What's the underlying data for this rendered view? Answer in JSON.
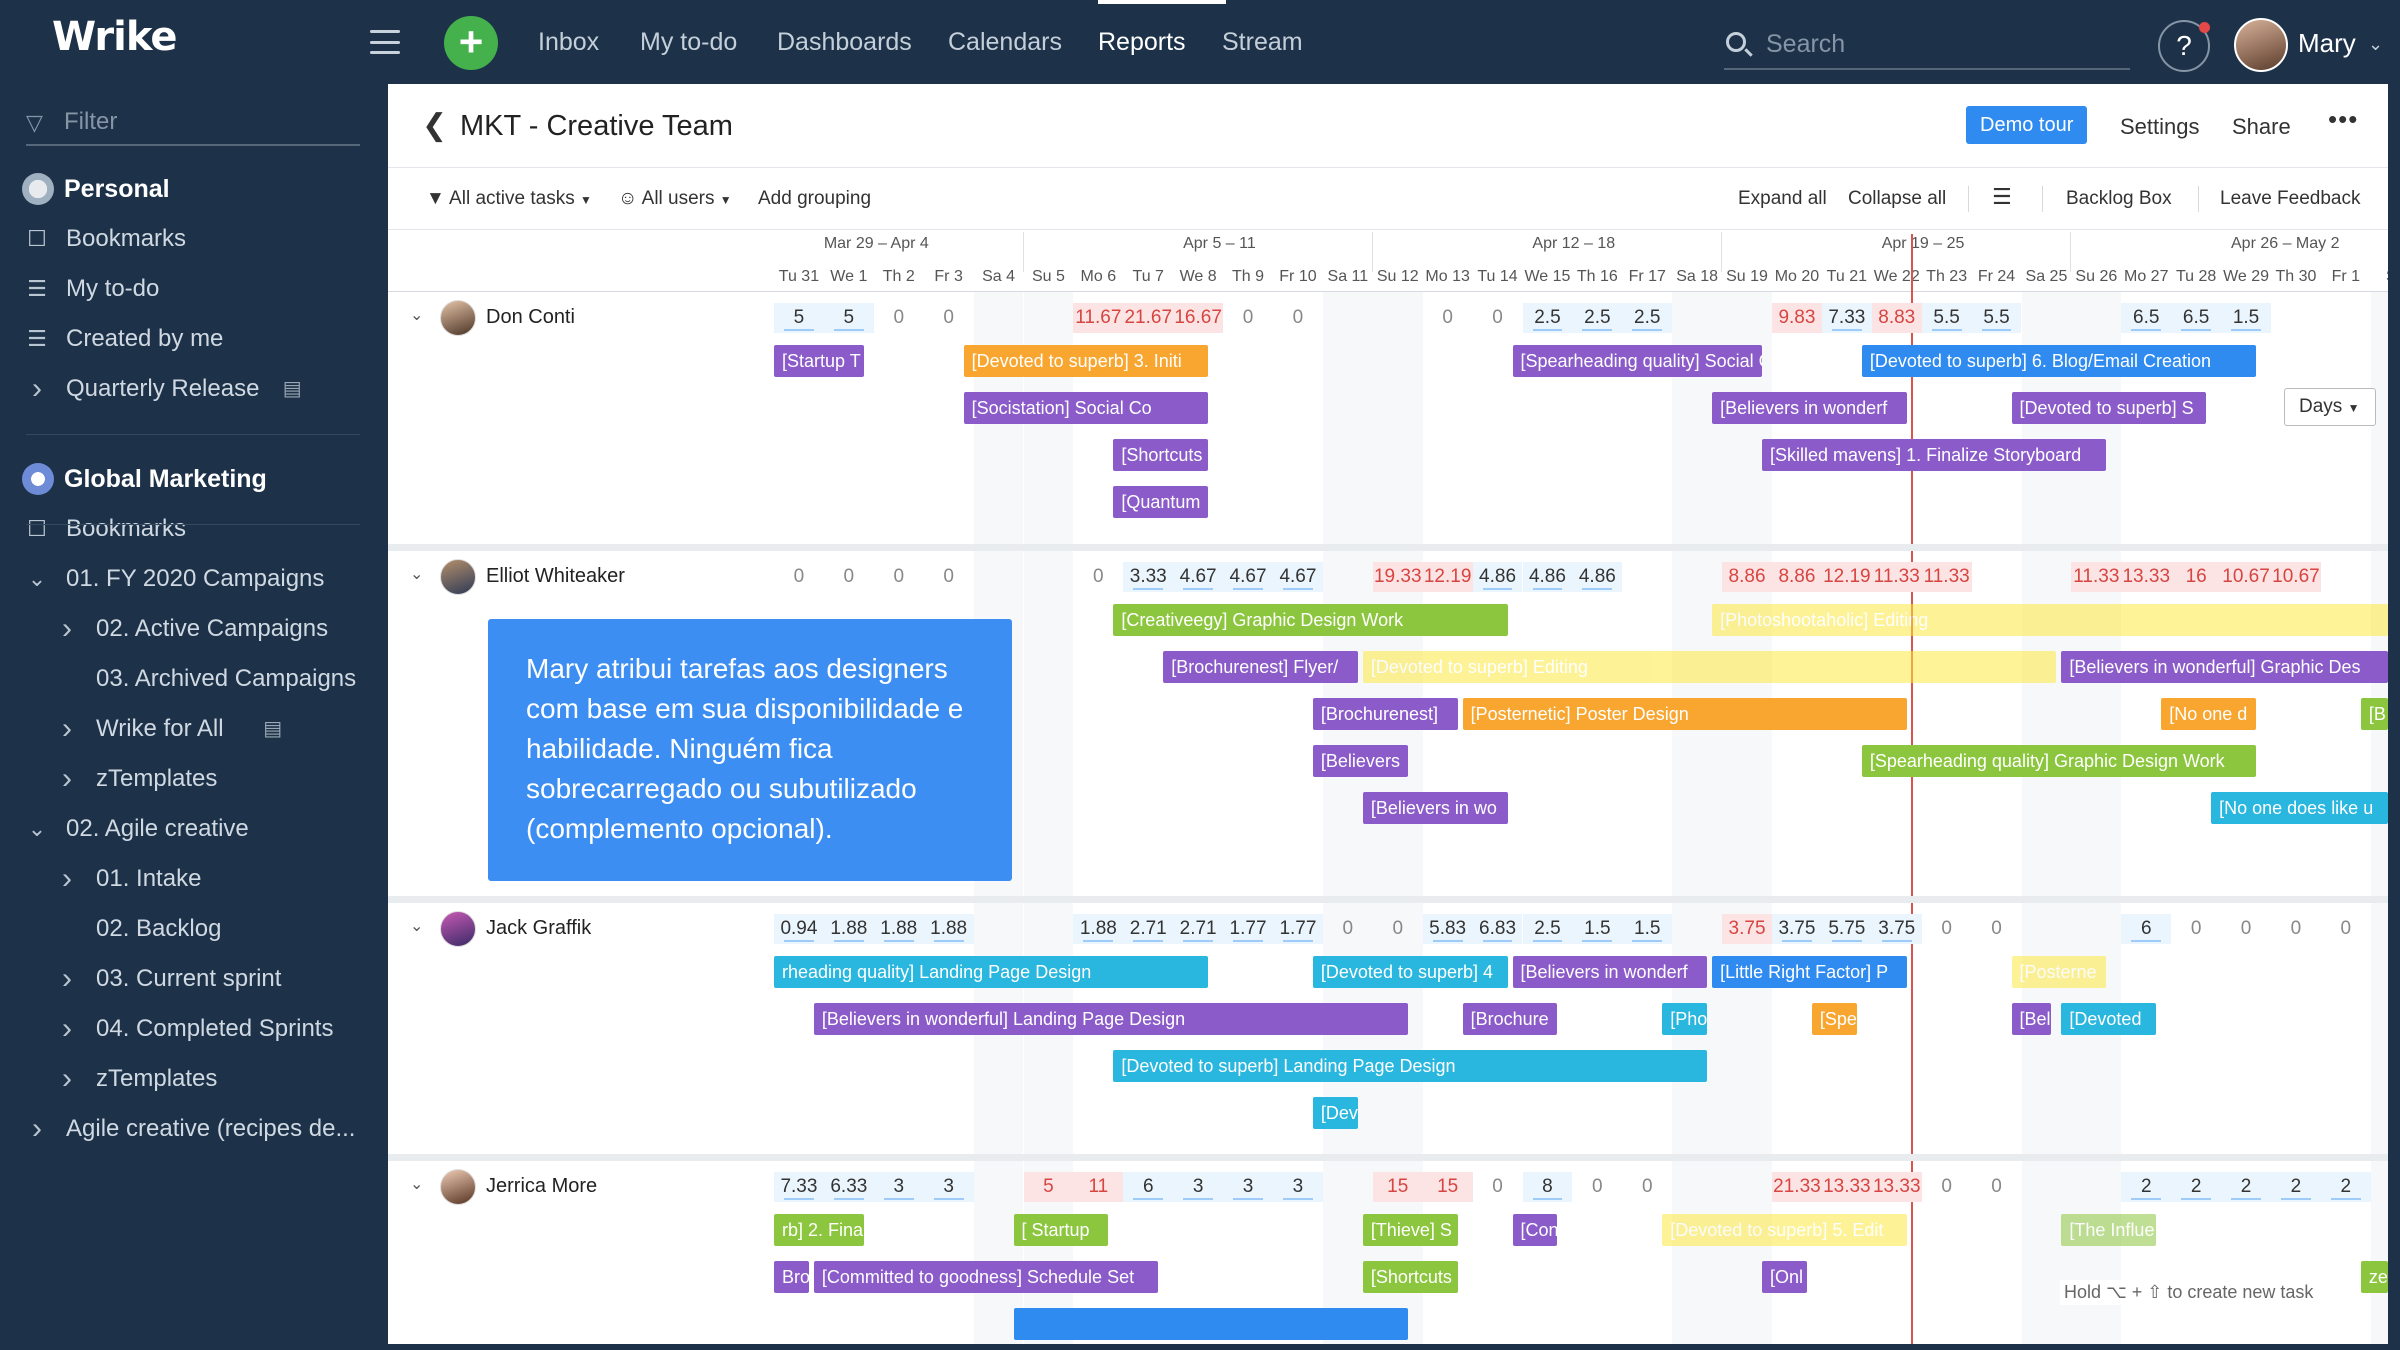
{
  "app": {
    "logo": "Wrike"
  },
  "topnav": {
    "items": [
      "Inbox",
      "My to-do",
      "Dashboards",
      "Calendars",
      "Reports",
      "Stream"
    ],
    "active": "Reports",
    "search_placeholder": "Search",
    "help": "?",
    "user": "Mary"
  },
  "sidebar": {
    "filter_placeholder": "Filter",
    "items": [
      {
        "label": "Personal",
        "icon": "avatar-icon",
        "head": true
      },
      {
        "label": "Bookmarks",
        "icon": "bookmark-icon"
      },
      {
        "label": "My to-do",
        "icon": "list-icon"
      },
      {
        "label": "Created by me",
        "icon": "list-icon"
      },
      {
        "label": "Quarterly Release",
        "icon": "chevron-right-icon",
        "badge": "doc-icon"
      },
      {
        "label": "Global Marketing",
        "icon": "rocket-icon",
        "head": true
      },
      {
        "label": "Bookmarks",
        "icon": "bookmark-icon"
      },
      {
        "label": "01. FY 2020 Campaigns",
        "icon": "chevron-down-icon"
      },
      {
        "label": "02. Active Campaigns",
        "icon": "chevron-right-icon",
        "indent": 1
      },
      {
        "label": "03. Archived Campaigns",
        "icon": "",
        "indent": 1
      },
      {
        "label": "Wrike for All",
        "icon": "chevron-right-icon",
        "indent": 1,
        "badge": "doc-icon"
      },
      {
        "label": "zTemplates",
        "icon": "chevron-right-icon",
        "indent": 1
      },
      {
        "label": "02. Agile creative",
        "icon": "chevron-down-icon"
      },
      {
        "label": "01. Intake",
        "icon": "chevron-right-icon",
        "indent": 1
      },
      {
        "label": "02. Backlog",
        "icon": "",
        "indent": 1
      },
      {
        "label": "03. Current sprint",
        "icon": "chevron-right-icon",
        "indent": 1
      },
      {
        "label": "04. Completed Sprints",
        "icon": "chevron-right-icon",
        "indent": 1
      },
      {
        "label": "zTemplates",
        "icon": "chevron-right-icon",
        "indent": 1
      },
      {
        "label": "Agile creative (recipes de...",
        "icon": "chevron-right-icon"
      }
    ]
  },
  "page": {
    "title": "MKT - Creative Team",
    "demo_tour": "Demo tour",
    "settings": "Settings",
    "share": "Share",
    "more": "•••"
  },
  "toolbar": {
    "filter_tasks": "All active tasks",
    "filter_users": "All users",
    "add_grouping": "Add grouping",
    "expand_all": "Expand all",
    "collapse_all": "Collapse all",
    "backlog_box": "Backlog Box",
    "leave_feedback": "Leave Feedback"
  },
  "timeline": {
    "weeks": [
      "Mar 29 – Apr 4",
      "Apr 5 – 11",
      "Apr 12 – 18",
      "Apr 19 – 25",
      "Apr 26 – May 2"
    ],
    "days": [
      "Tu 31",
      "We 1",
      "Th 2",
      "Fr 3",
      "Sa 4",
      "Su 5",
      "Mo 6",
      "Tu 7",
      "We 8",
      "Th 9",
      "Fr 10",
      "Sa 11",
      "Su 12",
      "Mo 13",
      "Tu 14",
      "We 15",
      "Th 16",
      "Fr 17",
      "Sa 18",
      "Su 19",
      "Mo 20",
      "Tu 21",
      "We 22",
      "Th 23",
      "Fr 24",
      "Sa 25",
      "Su 26",
      "Mo 27",
      "Tu 28",
      "We 29",
      "Th 30",
      "Fr 1",
      "Sa"
    ],
    "scale": "Days"
  },
  "colors": {
    "orange": "#f8a630",
    "purple": "#8a5bc9",
    "green": "#8cc63f",
    "cyan": "#29b6df",
    "blue": "#2f8bf0",
    "yellow": "#fde940",
    "over": "#d64541"
  },
  "people": [
    {
      "name": "Don Conti",
      "workload": [
        [
          "5",
          0
        ],
        [
          "5",
          0
        ],
        [
          "0",
          0
        ],
        [
          "0",
          0
        ],
        null,
        null,
        [
          "11.67",
          1
        ],
        [
          "21.67",
          1
        ],
        [
          "16.67",
          1
        ],
        [
          "0",
          0
        ],
        [
          "0",
          0
        ],
        null,
        null,
        [
          "0",
          0
        ],
        [
          "0",
          0
        ],
        [
          "2.5",
          0
        ],
        [
          "2.5",
          0
        ],
        [
          "2.5",
          0
        ],
        null,
        null,
        [
          "9.83",
          1
        ],
        [
          "7.33",
          0
        ],
        [
          "8.83",
          1
        ],
        [
          "5.5",
          0
        ],
        [
          "5.5",
          0
        ],
        null,
        null,
        [
          "6.5",
          0
        ],
        [
          "6.5",
          0
        ],
        [
          "1.5",
          0
        ],
        null,
        null,
        null
      ],
      "tasks": [
        {
          "label": "[Startup T",
          "start": 0,
          "end": 1.8,
          "lane": 0,
          "color": "purple"
        },
        {
          "label": "[Devoted to superb] 3. Initi",
          "start": 3.8,
          "end": 8.7,
          "lane": 0,
          "color": "orange"
        },
        {
          "label": "[Spearheading quality] Social Cop",
          "start": 14.8,
          "end": 19.8,
          "lane": 0,
          "color": "purple"
        },
        {
          "label": "[Devoted to superb] 6. Blog/Email Creation",
          "start": 21.8,
          "end": 29.7,
          "lane": 0,
          "color": "blue"
        },
        {
          "label": "[Socistation] Social Co",
          "start": 3.8,
          "end": 8.7,
          "lane": 1,
          "color": "purple"
        },
        {
          "label": "[Believers in wonderf",
          "start": 18.8,
          "end": 22.7,
          "lane": 1,
          "color": "purple"
        },
        {
          "label": "[Devoted to superb] S",
          "start": 24.8,
          "end": 28.7,
          "lane": 1,
          "color": "purple"
        },
        {
          "label": "[Shortcuts",
          "start": 6.8,
          "end": 8.7,
          "lane": 2,
          "color": "purple"
        },
        {
          "label": "[Skilled mavens] 1. Finalize Storyboard",
          "start": 19.8,
          "end": 26.7,
          "lane": 2,
          "color": "purple"
        },
        {
          "label": "[Quantum",
          "start": 6.8,
          "end": 8.7,
          "lane": 3,
          "color": "purple"
        }
      ]
    },
    {
      "name": "Elliot Whiteaker",
      "workload": [
        [
          "0",
          0
        ],
        [
          "0",
          0
        ],
        [
          "0",
          0
        ],
        [
          "0",
          0
        ],
        null,
        null,
        [
          "0",
          0
        ],
        [
          "3.33",
          0
        ],
        [
          "4.67",
          0
        ],
        [
          "4.67",
          0
        ],
        [
          "4.67",
          0
        ],
        null,
        [
          "19.33",
          1
        ],
        [
          "12.19",
          1
        ],
        [
          "4.86",
          0
        ],
        [
          "4.86",
          0
        ],
        [
          "4.86",
          0
        ],
        null,
        null,
        [
          "8.86",
          1
        ],
        [
          "8.86",
          1
        ],
        [
          "12.19",
          1
        ],
        [
          "11.33",
          1
        ],
        [
          "11.33",
          1
        ],
        null,
        null,
        [
          "11.33",
          1
        ],
        [
          "13.33",
          1
        ],
        [
          "16",
          1
        ],
        [
          "10.67",
          1
        ],
        [
          "10.67",
          1
        ],
        null,
        null
      ],
      "tasks": [
        {
          "label": "[Creativeegy] Graphic Design Work",
          "start": 6.8,
          "end": 14.7,
          "lane": 0,
          "color": "green"
        },
        {
          "label": "[Photoshootaholic] Editing",
          "start": 18.8,
          "end": 33,
          "lane": 0,
          "color": "yellow",
          "dim": true
        },
        {
          "label": "[Brochurenest] Flyer/",
          "start": 7.8,
          "end": 11.7,
          "lane": 1,
          "color": "purple"
        },
        {
          "label": "[Devoted to superb] Editing",
          "start": 11.8,
          "end": 25.7,
          "lane": 1,
          "color": "yellow",
          "dim": true
        },
        {
          "label": "[Believers in wonderful] Graphic Des",
          "start": 25.8,
          "end": 33,
          "lane": 1,
          "color": "purple"
        },
        {
          "label": "[Brochurenest]",
          "start": 10.8,
          "end": 13.7,
          "lane": 2,
          "color": "purple"
        },
        {
          "label": "[Posternetic] Poster Design",
          "start": 13.8,
          "end": 22.7,
          "lane": 2,
          "color": "orange"
        },
        {
          "label": "[No one d",
          "start": 27.8,
          "end": 29.7,
          "lane": 2,
          "color": "orange"
        },
        {
          "label": "[B",
          "start": 31.8,
          "end": 33,
          "lane": 2,
          "color": "green"
        },
        {
          "label": "[Believers",
          "start": 10.8,
          "end": 12.7,
          "lane": 3,
          "color": "purple"
        },
        {
          "label": "[Spearheading quality] Graphic Design Work",
          "start": 21.8,
          "end": 29.7,
          "lane": 3,
          "color": "green"
        },
        {
          "label": "[Believers in wo",
          "start": 11.8,
          "end": 14.7,
          "lane": 4,
          "color": "purple"
        },
        {
          "label": "[No one does like u",
          "start": 28.8,
          "end": 33,
          "lane": 4,
          "color": "cyan"
        }
      ]
    },
    {
      "name": "Jack Graffik",
      "workload": [
        [
          "0.94",
          0
        ],
        [
          "1.88",
          0
        ],
        [
          "1.88",
          0
        ],
        [
          "1.88",
          0
        ],
        null,
        null,
        [
          "1.88",
          0
        ],
        [
          "2.71",
          0
        ],
        [
          "2.71",
          0
        ],
        [
          "1.77",
          0
        ],
        [
          "1.77",
          0
        ],
        [
          "0",
          0
        ],
        [
          "0",
          0
        ],
        [
          "5.83",
          0
        ],
        [
          "6.83",
          0
        ],
        [
          "2.5",
          0
        ],
        [
          "1.5",
          0
        ],
        [
          "1.5",
          0
        ],
        null,
        [
          "3.75",
          1
        ],
        [
          "3.75",
          0
        ],
        [
          "5.75",
          0
        ],
        [
          "3.75",
          0
        ],
        [
          "0",
          0
        ],
        [
          "0",
          0
        ],
        null,
        null,
        [
          "6",
          0
        ],
        [
          "0",
          0
        ],
        [
          "0",
          0
        ],
        [
          "0",
          0
        ],
        [
          "0",
          0
        ],
        null
      ],
      "tasks": [
        {
          "label": "rheading quality] Landing Page Design",
          "start": 0,
          "end": 8.7,
          "lane": 0,
          "color": "cyan"
        },
        {
          "label": "[Devoted to superb] 4",
          "start": 10.8,
          "end": 14.7,
          "lane": 0,
          "color": "cyan"
        },
        {
          "label": "[Believers in wonderf",
          "start": 14.8,
          "end": 18.7,
          "lane": 0,
          "color": "purple"
        },
        {
          "label": "[Little Right Factor] P",
          "start": 18.8,
          "end": 22.7,
          "lane": 0,
          "color": "blue"
        },
        {
          "label": "[Posterne",
          "start": 24.8,
          "end": 26.7,
          "lane": 0,
          "color": "yellow",
          "dim": true
        },
        {
          "label": "[Believers in wonderful] Landing Page Design",
          "start": 0.8,
          "end": 12.7,
          "lane": 1,
          "color": "purple"
        },
        {
          "label": "[Brochure",
          "start": 13.8,
          "end": 15.7,
          "lane": 1,
          "color": "purple"
        },
        {
          "label": "[Pho",
          "start": 17.8,
          "end": 18.7,
          "lane": 1,
          "color": "cyan"
        },
        {
          "label": "[Spe",
          "start": 20.8,
          "end": 21.7,
          "lane": 1,
          "color": "orange"
        },
        {
          "label": "[Bel",
          "start": 24.8,
          "end": 25.6,
          "lane": 1,
          "color": "purple"
        },
        {
          "label": "[Devoted",
          "start": 25.8,
          "end": 27.7,
          "lane": 1,
          "color": "cyan"
        },
        {
          "label": "[Devoted to superb] Landing Page Design",
          "start": 6.8,
          "end": 18.7,
          "lane": 2,
          "color": "cyan"
        },
        {
          "label": "[Dev",
          "start": 10.8,
          "end": 11.7,
          "lane": 3,
          "color": "cyan"
        }
      ]
    },
    {
      "name": "Jerrica More",
      "workload": [
        [
          "7.33",
          0
        ],
        [
          "6.33",
          0
        ],
        [
          "3",
          0
        ],
        [
          "3",
          0
        ],
        null,
        [
          "5",
          1
        ],
        [
          "11",
          1
        ],
        [
          "6",
          0
        ],
        [
          "3",
          0
        ],
        [
          "3",
          0
        ],
        [
          "3",
          0
        ],
        null,
        [
          "15",
          1
        ],
        [
          "15",
          1
        ],
        [
          "0",
          0
        ],
        [
          "8",
          0
        ],
        [
          "0",
          0
        ],
        [
          "0",
          0
        ],
        null,
        null,
        [
          "21.33",
          1
        ],
        [
          "13.33",
          1
        ],
        [
          "13.33",
          1
        ],
        [
          "0",
          0
        ],
        [
          "0",
          0
        ],
        null,
        null,
        [
          "2",
          0
        ],
        [
          "2",
          0
        ],
        [
          "2",
          0
        ],
        [
          "2",
          0
        ],
        [
          "2",
          0
        ],
        null
      ],
      "tasks": [
        {
          "label": "rb] 2. Fina",
          "start": 0,
          "end": 1.8,
          "lane": 0,
          "color": "green"
        },
        {
          "label": "[ Startup",
          "start": 4.8,
          "end": 6.7,
          "lane": 0,
          "color": "green"
        },
        {
          "label": "[Thieve] S",
          "start": 11.8,
          "end": 13.7,
          "lane": 0,
          "color": "green"
        },
        {
          "label": "[Con",
          "start": 14.8,
          "end": 15.7,
          "lane": 0,
          "color": "purple"
        },
        {
          "label": "[Devoted to superb] 5. Edit",
          "start": 17.8,
          "end": 22.7,
          "lane": 0,
          "color": "yellow",
          "dim": true
        },
        {
          "label": "[The Influe",
          "start": 25.8,
          "end": 27.7,
          "lane": 0,
          "color": "green",
          "dim": true
        },
        {
          "label": "Bros",
          "start": 0,
          "end": 0.7,
          "lane": 1,
          "color": "purple"
        },
        {
          "label": "[Committed to goodness] Schedule Set",
          "start": 0.8,
          "end": 7.7,
          "lane": 1,
          "color": "purple"
        },
        {
          "label": "[Shortcuts",
          "start": 11.8,
          "end": 13.7,
          "lane": 1,
          "color": "green"
        },
        {
          "label": "[Onl",
          "start": 19.8,
          "end": 20.7,
          "lane": 1,
          "color": "purple"
        },
        {
          "label": "ze Ac",
          "start": 31.8,
          "end": 33,
          "lane": 1,
          "color": "green"
        },
        {
          "label": "",
          "start": 4.8,
          "end": 12.7,
          "lane": 2,
          "color": "blue"
        }
      ]
    }
  ],
  "tooltip": "Mary atribui tarefas aos designers com base em sua disponibilidade e habilidade. Ninguém fica sobrecarregado ou subutilizado (complemento opcional).",
  "hint": "Hold ⌥ + ⇧ to create new task"
}
